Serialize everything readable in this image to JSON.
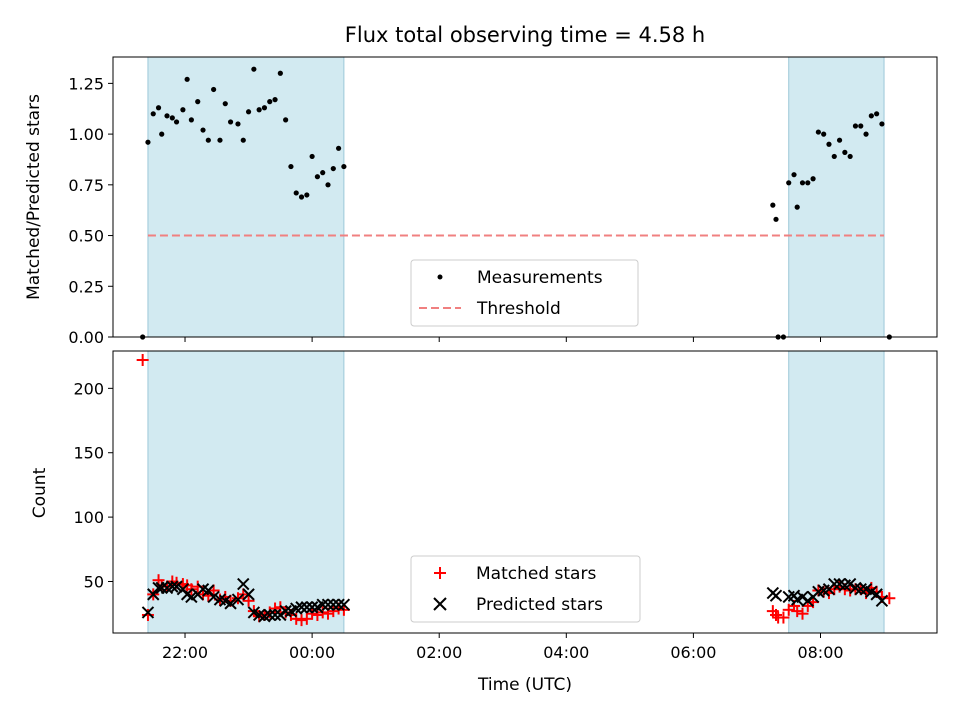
{
  "chart_data": [
    {
      "type": "scatter",
      "title": "Flux total observing time = 4.58 h",
      "ylabel": "Matched/Predicted stars",
      "xlabel": "",
      "x_range": [
        "20:52",
        "09:50"
      ],
      "ylim": [
        0,
        1.38
      ],
      "yticks": [
        "0.00",
        "0.25",
        "0.50",
        "0.75",
        "1.00",
        "1.25"
      ],
      "ytick_values": [
        0,
        0.25,
        0.5,
        0.75,
        1.0,
        1.25
      ],
      "grid": false,
      "legend_position": "lower center",
      "shaded_intervals": [
        [
          "21:25",
          "00:30"
        ],
        [
          "07:30",
          "09:00"
        ]
      ],
      "shade_color": "#add8e6",
      "threshold": {
        "name": "Threshold",
        "value": 0.5,
        "x_from": "21:25",
        "x_to": "09:00",
        "color": "#f08080"
      },
      "series": [
        {
          "name": "Measurements",
          "color": "#000000",
          "points": [
            [
              "21:20",
              0.0
            ],
            [
              "21:25",
              0.96
            ],
            [
              "21:30",
              1.1
            ],
            [
              "21:35",
              1.13
            ],
            [
              "21:38",
              1.0
            ],
            [
              "21:43",
              1.09
            ],
            [
              "21:48",
              1.08
            ],
            [
              "21:52",
              1.06
            ],
            [
              "21:58",
              1.12
            ],
            [
              "22:02",
              1.27
            ],
            [
              "22:06",
              1.07
            ],
            [
              "22:12",
              1.16
            ],
            [
              "22:17",
              1.02
            ],
            [
              "22:22",
              0.97
            ],
            [
              "22:27",
              1.22
            ],
            [
              "22:33",
              0.97
            ],
            [
              "22:38",
              1.15
            ],
            [
              "22:43",
              1.06
            ],
            [
              "22:50",
              1.05
            ],
            [
              "22:55",
              0.97
            ],
            [
              "23:00",
              1.11
            ],
            [
              "23:05",
              1.32
            ],
            [
              "23:10",
              1.12
            ],
            [
              "23:15",
              1.13
            ],
            [
              "23:20",
              1.16
            ],
            [
              "23:25",
              1.17
            ],
            [
              "23:30",
              1.3
            ],
            [
              "23:35",
              1.07
            ],
            [
              "23:40",
              0.84
            ],
            [
              "23:45",
              0.71
            ],
            [
              "23:50",
              0.69
            ],
            [
              "23:55",
              0.7
            ],
            [
              "00:00",
              0.89
            ],
            [
              "00:05",
              0.79
            ],
            [
              "00:10",
              0.81
            ],
            [
              "00:15",
              0.75
            ],
            [
              "00:20",
              0.83
            ],
            [
              "00:25",
              0.93
            ],
            [
              "00:30",
              0.84
            ],
            [
              "07:15",
              0.65
            ],
            [
              "07:18",
              0.58
            ],
            [
              "07:20",
              0.0
            ],
            [
              "07:25",
              0.0
            ],
            [
              "07:30",
              0.76
            ],
            [
              "07:35",
              0.8
            ],
            [
              "07:38",
              0.64
            ],
            [
              "07:43",
              0.76
            ],
            [
              "07:48",
              0.76
            ],
            [
              "07:53",
              0.78
            ],
            [
              "07:58",
              1.01
            ],
            [
              "08:03",
              1.0
            ],
            [
              "08:08",
              0.95
            ],
            [
              "08:13",
              0.89
            ],
            [
              "08:18",
              0.97
            ],
            [
              "08:23",
              0.91
            ],
            [
              "08:28",
              0.89
            ],
            [
              "08:33",
              1.04
            ],
            [
              "08:38",
              1.04
            ],
            [
              "08:43",
              1.0
            ],
            [
              "08:48",
              1.09
            ],
            [
              "08:53",
              1.1
            ],
            [
              "08:58",
              1.05
            ],
            [
              "09:05",
              0.0
            ]
          ]
        }
      ]
    },
    {
      "type": "scatter",
      "title": "",
      "ylabel": "Count",
      "xlabel": "Time (UTC)",
      "x_range": [
        "20:52",
        "09:50"
      ],
      "xticks": [
        "22:00",
        "00:00",
        "02:00",
        "04:00",
        "06:00",
        "08:00"
      ],
      "ylim": [
        10,
        229
      ],
      "yticks": [
        "50",
        "100",
        "150",
        "200"
      ],
      "ytick_values": [
        50,
        100,
        150,
        200
      ],
      "grid": false,
      "legend_position": "lower center",
      "shaded_intervals": [
        [
          "21:25",
          "00:30"
        ],
        [
          "07:30",
          "09:00"
        ]
      ],
      "shade_color": "#add8e6",
      "series": [
        {
          "name": "Matched stars",
          "marker": "+",
          "color": "#ff0000",
          "points": [
            [
              "21:20",
              222
            ],
            [
              "21:25",
              24
            ],
            [
              "21:30",
              40
            ],
            [
              "21:35",
              51
            ],
            [
              "21:38",
              47
            ],
            [
              "21:43",
              46
            ],
            [
              "21:48",
              50
            ],
            [
              "21:52",
              49
            ],
            [
              "21:58",
              48
            ],
            [
              "22:02",
              47
            ],
            [
              "22:06",
              44
            ],
            [
              "22:12",
              46
            ],
            [
              "22:17",
              40
            ],
            [
              "22:22",
              39
            ],
            [
              "22:27",
              43
            ],
            [
              "22:33",
              36
            ],
            [
              "22:38",
              38
            ],
            [
              "22:43",
              35
            ],
            [
              "22:50",
              37
            ],
            [
              "22:55",
              40
            ],
            [
              "23:00",
              35
            ],
            [
              "23:05",
              27
            ],
            [
              "23:10",
              23
            ],
            [
              "23:15",
              24
            ],
            [
              "23:20",
              26
            ],
            [
              "23:25",
              29
            ],
            [
              "23:30",
              30
            ],
            [
              "23:35",
              26
            ],
            [
              "23:40",
              24
            ],
            [
              "23:45",
              21
            ],
            [
              "23:50",
              20
            ],
            [
              "23:55",
              21
            ],
            [
              "00:00",
              25
            ],
            [
              "00:05",
              24
            ],
            [
              "00:10",
              26
            ],
            [
              "00:15",
              25
            ],
            [
              "00:20",
              27
            ],
            [
              "00:25",
              29
            ],
            [
              "00:30",
              28
            ],
            [
              "07:15",
              27
            ],
            [
              "07:18",
              24
            ],
            [
              "07:20",
              22
            ],
            [
              "07:25",
              22
            ],
            [
              "07:30",
              28
            ],
            [
              "07:35",
              31
            ],
            [
              "07:38",
              27
            ],
            [
              "07:43",
              25
            ],
            [
              "07:48",
              31
            ],
            [
              "07:53",
              34
            ],
            [
              "07:58",
              43
            ],
            [
              "08:03",
              42
            ],
            [
              "08:08",
              41
            ],
            [
              "08:13",
              44
            ],
            [
              "08:18",
              46
            ],
            [
              "08:23",
              44
            ],
            [
              "08:28",
              43
            ],
            [
              "08:33",
              44
            ],
            [
              "08:38",
              44
            ],
            [
              "08:43",
              41
            ],
            [
              "08:48",
              45
            ],
            [
              "08:53",
              42
            ],
            [
              "08:58",
              38
            ],
            [
              "09:05",
              37
            ]
          ]
        },
        {
          "name": "Predicted stars",
          "marker": "x",
          "color": "#000000",
          "points": [
            [
              "21:25",
              26
            ],
            [
              "21:30",
              40
            ],
            [
              "21:35",
              45
            ],
            [
              "21:38",
              45
            ],
            [
              "21:43",
              45
            ],
            [
              "21:48",
              46
            ],
            [
              "21:52",
              46
            ],
            [
              "21:58",
              44
            ],
            [
              "22:02",
              40
            ],
            [
              "22:06",
              38
            ],
            [
              "22:12",
              40
            ],
            [
              "22:17",
              44
            ],
            [
              "22:22",
              43
            ],
            [
              "22:27",
              38
            ],
            [
              "22:33",
              36
            ],
            [
              "22:38",
              35
            ],
            [
              "22:43",
              33
            ],
            [
              "22:50",
              36
            ],
            [
              "22:55",
              48
            ],
            [
              "23:00",
              40
            ],
            [
              "23:05",
              26
            ],
            [
              "23:10",
              24
            ],
            [
              "23:15",
              23
            ],
            [
              "23:20",
              24
            ],
            [
              "23:25",
              24
            ],
            [
              "23:30",
              24
            ],
            [
              "23:35",
              27
            ],
            [
              "23:40",
              27
            ],
            [
              "23:45",
              29
            ],
            [
              "23:50",
              30
            ],
            [
              "23:55",
              30
            ],
            [
              "00:00",
              30
            ],
            [
              "00:05",
              30
            ],
            [
              "00:10",
              32
            ],
            [
              "00:15",
              32
            ],
            [
              "00:20",
              32
            ],
            [
              "00:25",
              32
            ],
            [
              "00:30",
              32
            ],
            [
              "07:15",
              41
            ],
            [
              "07:18",
              39
            ],
            [
              "07:30",
              38
            ],
            [
              "07:35",
              39
            ],
            [
              "07:38",
              36
            ],
            [
              "07:43",
              38
            ],
            [
              "07:48",
              35
            ],
            [
              "07:53",
              38
            ],
            [
              "07:58",
              42
            ],
            [
              "08:03",
              43
            ],
            [
              "08:08",
              44
            ],
            [
              "08:13",
              48
            ],
            [
              "08:18",
              48
            ],
            [
              "08:23",
              47
            ],
            [
              "08:28",
              48
            ],
            [
              "08:33",
              45
            ],
            [
              "08:38",
              44
            ],
            [
              "08:43",
              44
            ],
            [
              "08:48",
              42
            ],
            [
              "08:53",
              40
            ],
            [
              "08:58",
              35
            ]
          ]
        }
      ]
    }
  ]
}
